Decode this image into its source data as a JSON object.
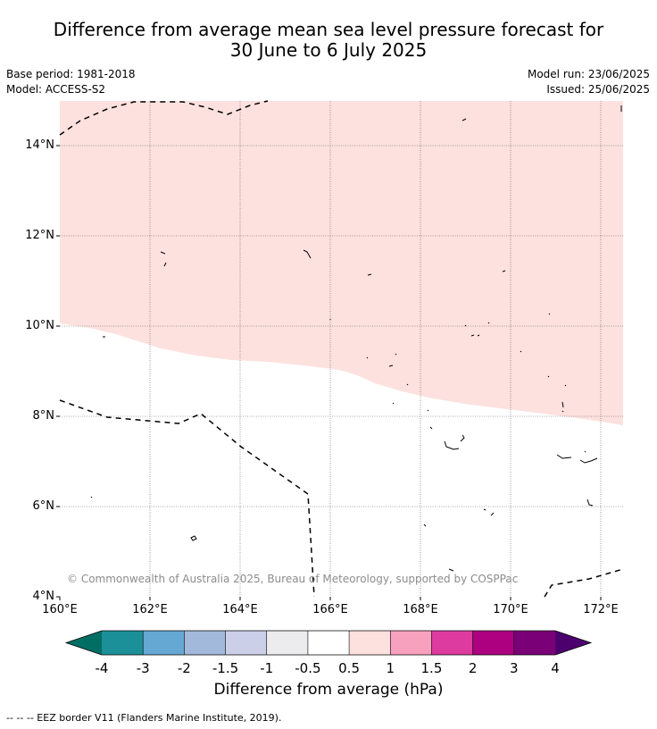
{
  "title_line1": "Difference from average mean sea level pressure forecast for",
  "title_line2": "30 June to 6 July 2025",
  "base_period": "Base period: 1981-2018",
  "model": "Model: ACCESS-S2",
  "model_run": "Model run: 23/06/2025",
  "issued": "Issued: 25/06/2025",
  "copyright": "© Commonwealth of Australia 2025, Bureau of Meteorology, supported by COSPPac",
  "lat_ticks": [
    "14°N",
    "12°N",
    "10°N",
    "8°N",
    "6°N",
    "4°N"
  ],
  "lon_ticks": [
    "160°E",
    "162°E",
    "164°E",
    "166°E",
    "168°E",
    "170°E",
    "172°E"
  ],
  "colorbar": {
    "title": "Difference from average (hPa)",
    "labels": [
      "-4",
      "-3",
      "-2",
      "-1.5",
      "-1",
      "-0.5",
      "0.5",
      "1",
      "1.5",
      "2",
      "3",
      "4"
    ],
    "colors": [
      "#006e63",
      "#1b9098",
      "#65a8d3",
      "#a3b9dc",
      "#cccfe8",
      "#ececef",
      "#ffffff",
      "#fce1de",
      "#f8a1bf",
      "#dd3b9f",
      "#ac0080",
      "#7a0078",
      "#4b006e"
    ]
  },
  "footnote": "--  --  -- EEZ border V11 (Flanders Marine Institute, 2019).",
  "shading_color": "#fce1de",
  "shaded_category": "0.5 to 1"
}
